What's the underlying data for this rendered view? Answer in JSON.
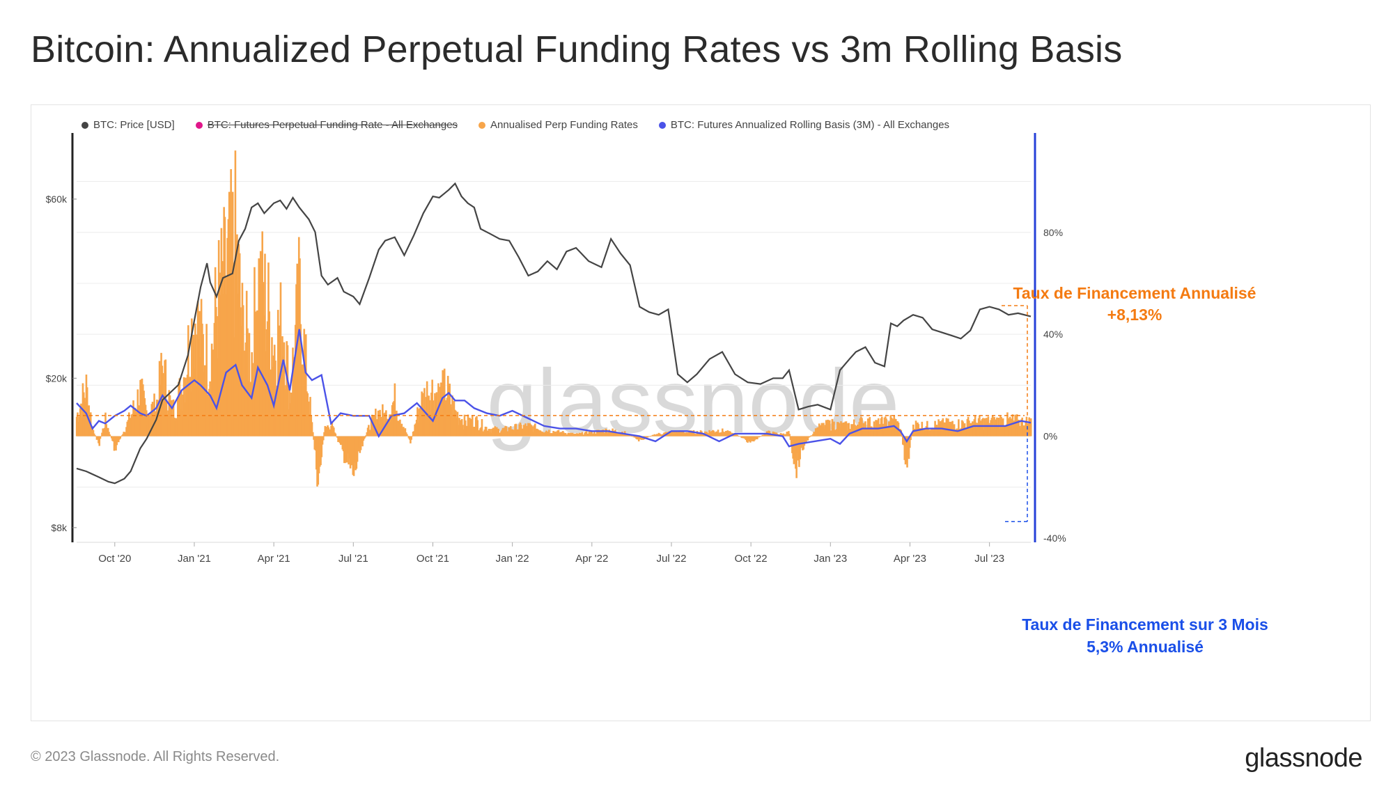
{
  "page": {
    "title": "Bitcoin: Annualized Perpetual Funding Rates vs 3m Rolling Basis"
  },
  "legend": [
    {
      "label": "BTC: Price [USD]",
      "color": "#444444",
      "struck": false
    },
    {
      "label": "BTC: Futures Perpetual Funding Rate - All Exchanges",
      "color": "#e0168a",
      "struck": true
    },
    {
      "label": "Annualised Perp Funding Rates",
      "color": "#f7a54a",
      "struck": false
    },
    {
      "label": "BTC: Futures Annualized Rolling Basis (3M) - All Exchanges",
      "color": "#4a52e8",
      "struck": false
    }
  ],
  "watermark": "glassnode",
  "annotations": {
    "funding_title": "Taux de Financement Annualisé",
    "funding_value": "+8,13%",
    "basis_title": "Taux de Financement sur 3 Mois",
    "basis_value": "5,3% Annualisé",
    "funding_color": "#f47b12",
    "basis_color": "#1a4fe8"
  },
  "footer": {
    "copyright": "© 2023 Glassnode. All Rights Reserved.",
    "logo": "glassnode"
  },
  "chart_data": {
    "type": "line",
    "title": "Bitcoin: Annualized Perpetual Funding Rates vs 3m Rolling Basis",
    "x_ticks": [
      "Oct '20",
      "Jan '21",
      "Apr '21",
      "Jul '21",
      "Oct '21",
      "Jan '22",
      "Apr '22",
      "Jul '22",
      "Oct '22",
      "Jan '23",
      "Apr '23",
      "Jul '23"
    ],
    "x_range": [
      2020.63,
      2023.63
    ],
    "left_axis": {
      "scale": "log",
      "ticks": [
        "$8k",
        "$20k",
        "$60k"
      ],
      "tick_values": [
        8000,
        20000,
        60000
      ],
      "range": [
        7500,
        90000
      ]
    },
    "right_axis": {
      "scale": "linear",
      "ticks": [
        "-40%",
        "0%",
        "40%",
        "80%"
      ],
      "tick_values": [
        -40,
        0,
        40,
        80
      ],
      "range": [
        -40,
        119
      ]
    },
    "reference_lines": {
      "funding_level": 8.13,
      "basis_level": -33.5
    },
    "series": [
      {
        "name": "BTC: Price [USD]",
        "axis": "left",
        "color": "#444444",
        "x": [
          2020.63,
          2020.66,
          2020.7,
          2020.73,
          2020.75,
          2020.78,
          2020.8,
          2020.83,
          2020.85,
          2020.88,
          2020.9,
          2020.93,
          2020.95,
          2020.98,
          2021.0,
          2021.02,
          2021.04,
          2021.05,
          2021.07,
          2021.09,
          2021.12,
          2021.14,
          2021.16,
          2021.18,
          2021.2,
          2021.22,
          2021.25,
          2021.27,
          2021.29,
          2021.31,
          2021.33,
          2021.36,
          2021.38,
          2021.4,
          2021.42,
          2021.45,
          2021.47,
          2021.5,
          2021.52,
          2021.55,
          2021.58,
          2021.6,
          2021.63,
          2021.66,
          2021.69,
          2021.72,
          2021.75,
          2021.77,
          2021.8,
          2021.82,
          2021.84,
          2021.86,
          2021.88,
          2021.9,
          2021.93,
          2021.96,
          2021.99,
          2022.02,
          2022.05,
          2022.08,
          2022.11,
          2022.14,
          2022.17,
          2022.2,
          2022.24,
          2022.28,
          2022.31,
          2022.34,
          2022.37,
          2022.4,
          2022.43,
          2022.46,
          2022.49,
          2022.52,
          2022.55,
          2022.58,
          2022.62,
          2022.66,
          2022.7,
          2022.74,
          2022.78,
          2022.82,
          2022.85,
          2022.87,
          2022.9,
          2022.93,
          2022.96,
          2023.0,
          2023.03,
          2023.06,
          2023.08,
          2023.11,
          2023.14,
          2023.17,
          2023.19,
          2023.21,
          2023.23,
          2023.26,
          2023.29,
          2023.32,
          2023.35,
          2023.38,
          2023.41,
          2023.44,
          2023.47,
          2023.5,
          2023.53,
          2023.56,
          2023.59,
          2023.63
        ],
        "values": [
          11500,
          11300,
          10900,
          10600,
          10500,
          10800,
          11300,
          13000,
          13800,
          15500,
          17500,
          18500,
          19200,
          23000,
          28500,
          35000,
          40500,
          36000,
          33000,
          37000,
          38000,
          46500,
          50000,
          57000,
          58500,
          55000,
          58500,
          59500,
          56500,
          60500,
          57000,
          53000,
          49000,
          37500,
          35500,
          37000,
          34000,
          33000,
          31500,
          37000,
          44000,
          46500,
          47500,
          42500,
          48000,
          55000,
          61000,
          60500,
          63500,
          66000,
          61000,
          58500,
          57000,
          50000,
          48500,
          47000,
          46500,
          42000,
          37500,
          38500,
          41000,
          39000,
          43500,
          44500,
          41000,
          39500,
          47000,
          43000,
          40000,
          31000,
          30000,
          29500,
          30500,
          20500,
          19500,
          20500,
          22500,
          23500,
          20500,
          19500,
          19300,
          20000,
          20000,
          21000,
          16500,
          16800,
          17000,
          16500,
          21000,
          22500,
          23500,
          24200,
          22000,
          21500,
          28000,
          27500,
          28500,
          29500,
          29000,
          27000,
          26500,
          26000,
          25500,
          26800,
          30500,
          31000,
          30500,
          29500,
          29800,
          29200
        ]
      },
      {
        "name": "Annualised Perp Funding Rates",
        "axis": "right",
        "color": "#f7a54a",
        "x": [
          2020.63,
          2020.66,
          2020.68,
          2020.7,
          2020.72,
          2020.75,
          2020.78,
          2020.8,
          2020.83,
          2020.85,
          2020.88,
          2020.9,
          2020.93,
          2020.96,
          2021.0,
          2021.02,
          2021.05,
          2021.07,
          2021.1,
          2021.13,
          2021.15,
          2021.18,
          2021.2,
          2021.23,
          2021.25,
          2021.28,
          2021.3,
          2021.33,
          2021.35,
          2021.37,
          2021.39,
          2021.41,
          2021.43,
          2021.46,
          2021.48,
          2021.5,
          2021.52,
          2021.55,
          2021.58,
          2021.6,
          2021.63,
          2021.66,
          2021.68,
          2021.71,
          2021.74,
          2021.77,
          2021.79,
          2021.82,
          2021.85,
          2021.88,
          2021.92,
          2021.96,
          2022.0,
          2022.05,
          2022.1,
          2022.15,
          2022.2,
          2022.25,
          2022.3,
          2022.35,
          2022.4,
          2022.45,
          2022.5,
          2022.55,
          2022.6,
          2022.65,
          2022.7,
          2022.75,
          2022.8,
          2022.85,
          2022.87,
          2022.89,
          2022.92,
          2022.96,
          2023.0,
          2023.05,
          2023.1,
          2023.15,
          2023.2,
          2023.22,
          2023.24,
          2023.26,
          2023.3,
          2023.35,
          2023.4,
          2023.45,
          2023.5,
          2023.55,
          2023.6,
          2023.63
        ],
        "values": [
          10,
          24,
          4,
          -4,
          8,
          -6,
          3,
          10,
          22,
          12,
          15,
          34,
          12,
          24,
          60,
          48,
          35,
          66,
          80,
          96,
          55,
          40,
          78,
          64,
          45,
          58,
          20,
          70,
          35,
          5,
          -22,
          4,
          6,
          -5,
          -12,
          -18,
          -8,
          5,
          12,
          10,
          18,
          4,
          -3,
          16,
          24,
          20,
          24,
          12,
          7,
          8,
          4,
          3,
          4,
          5,
          3,
          2,
          1,
          2,
          3,
          2,
          -2,
          1,
          2,
          2,
          2,
          3,
          1,
          -3,
          2,
          1,
          2,
          -15,
          -3,
          4,
          6,
          5,
          7,
          6,
          8,
          4,
          -15,
          6,
          5,
          6,
          6,
          7,
          7,
          8,
          7,
          7
        ]
      },
      {
        "name": "BTC: Futures Annualized Rolling Basis (3M) - All Exchanges",
        "axis": "right",
        "color": "#4a52e8",
        "x": [
          2020.63,
          2020.66,
          2020.68,
          2020.7,
          2020.72,
          2020.75,
          2020.78,
          2020.8,
          2020.83,
          2020.85,
          2020.88,
          2020.9,
          2020.93,
          2020.96,
          2021.0,
          2021.02,
          2021.05,
          2021.07,
          2021.1,
          2021.13,
          2021.15,
          2021.18,
          2021.2,
          2021.23,
          2021.25,
          2021.28,
          2021.3,
          2021.33,
          2021.35,
          2021.37,
          2021.4,
          2021.43,
          2021.46,
          2021.5,
          2021.55,
          2021.58,
          2021.62,
          2021.66,
          2021.7,
          2021.75,
          2021.78,
          2021.8,
          2021.82,
          2021.85,
          2021.88,
          2021.92,
          2021.96,
          2022.0,
          2022.05,
          2022.1,
          2022.15,
          2022.2,
          2022.25,
          2022.3,
          2022.35,
          2022.4,
          2022.45,
          2022.5,
          2022.55,
          2022.6,
          2022.65,
          2022.7,
          2022.75,
          2022.8,
          2022.85,
          2022.87,
          2022.9,
          2022.95,
          2023.0,
          2023.03,
          2023.06,
          2023.1,
          2023.15,
          2023.2,
          2023.22,
          2023.24,
          2023.26,
          2023.3,
          2023.35,
          2023.4,
          2023.45,
          2023.5,
          2023.55,
          2023.6,
          2023.63
        ],
        "values": [
          13,
          9,
          3,
          6,
          5,
          8,
          10,
          12,
          9,
          8,
          11,
          16,
          11,
          18,
          22,
          20,
          16,
          11,
          25,
          28,
          20,
          15,
          27,
          20,
          12,
          30,
          18,
          42,
          25,
          22,
          24,
          5,
          9,
          8,
          8,
          0,
          8,
          9,
          13,
          6,
          15,
          17,
          14,
          14,
          11,
          9,
          8,
          10,
          7,
          4,
          3,
          3,
          2,
          2,
          1,
          0,
          -2,
          2,
          2,
          1,
          -2,
          1,
          1,
          1,
          0,
          -4,
          -3,
          -2,
          -1,
          -3,
          1,
          3,
          3,
          4,
          2,
          -2,
          2,
          3,
          3,
          2,
          4,
          4,
          4,
          6,
          5.3
        ]
      }
    ]
  }
}
